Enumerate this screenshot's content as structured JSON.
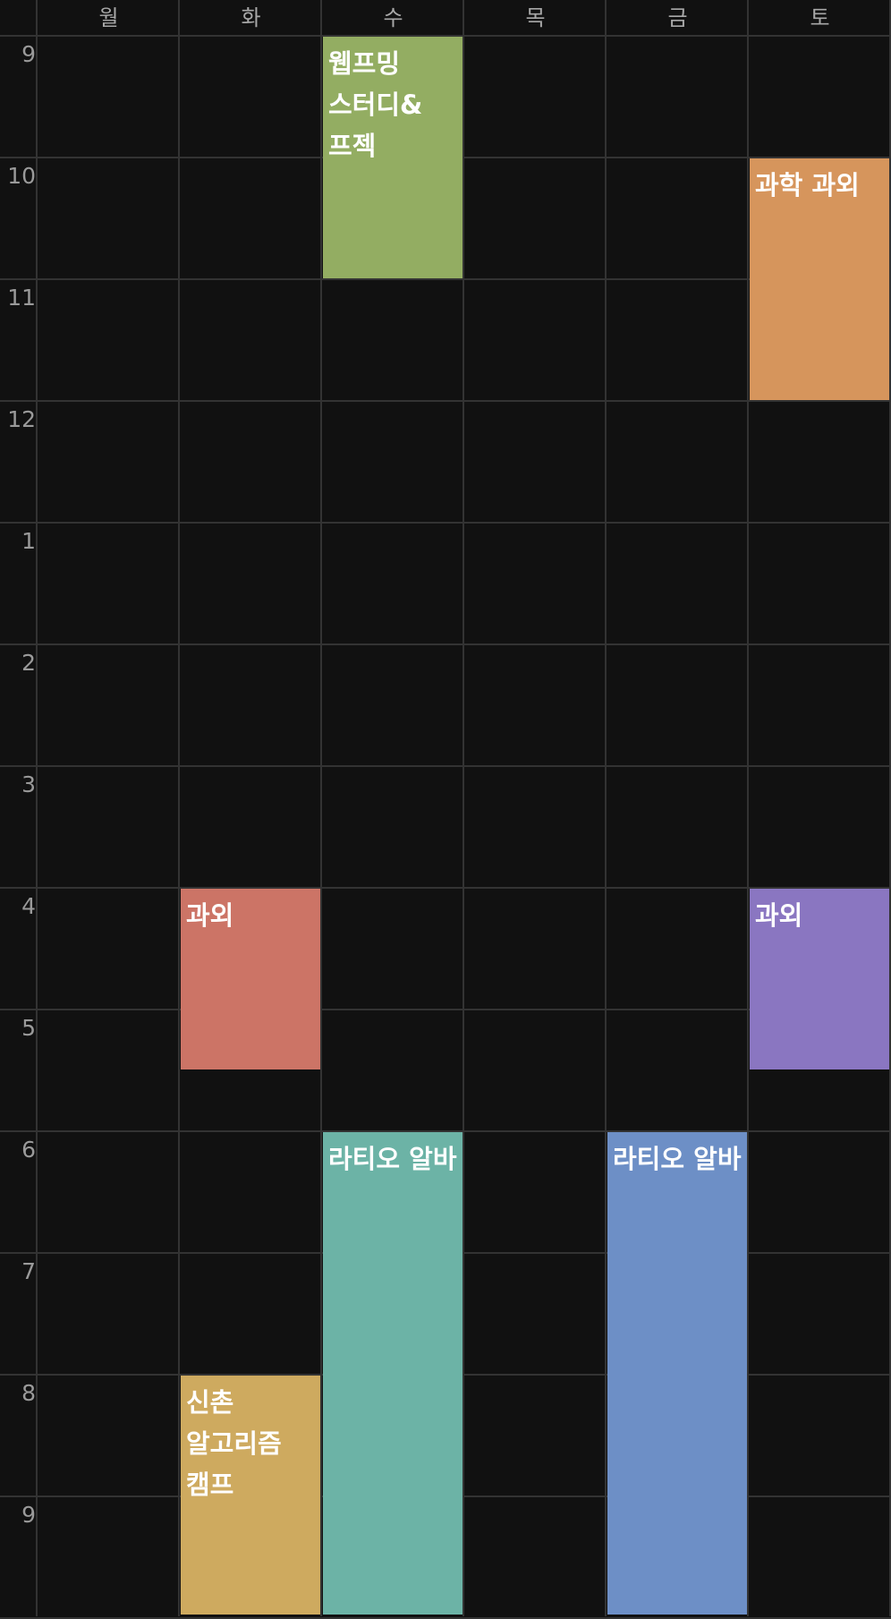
{
  "days": [
    "월",
    "화",
    "수",
    "목",
    "금",
    "토"
  ],
  "hours": [
    "9",
    "10",
    "11",
    "12",
    "1",
    "2",
    "3",
    "4",
    "5",
    "6",
    "7",
    "8",
    "9"
  ],
  "events": [
    {
      "title": "웹프밍 스터디&프젝",
      "day": "수",
      "start": 9,
      "end": 11,
      "color": "#93ad62"
    },
    {
      "title": "과학 과외",
      "day": "토",
      "start": 10,
      "end": 12,
      "color": "#d6955c"
    },
    {
      "title": "과외",
      "day": "화",
      "start": 16,
      "end": 17.5,
      "color": "#cc7466"
    },
    {
      "title": "과외",
      "day": "토",
      "start": 16,
      "end": 17.5,
      "color": "#8a76c1"
    },
    {
      "title": "라티오 알바",
      "day": "수",
      "start": 18,
      "end": 22,
      "color": "#6cb3a6"
    },
    {
      "title": "라티오 알바",
      "day": "금",
      "start": 18,
      "end": 22,
      "color": "#6d8fc6"
    },
    {
      "title": "신촌 알고리즘 캠프",
      "day": "화",
      "start": 20,
      "end": 22,
      "color": "#ceaa5f"
    }
  ]
}
